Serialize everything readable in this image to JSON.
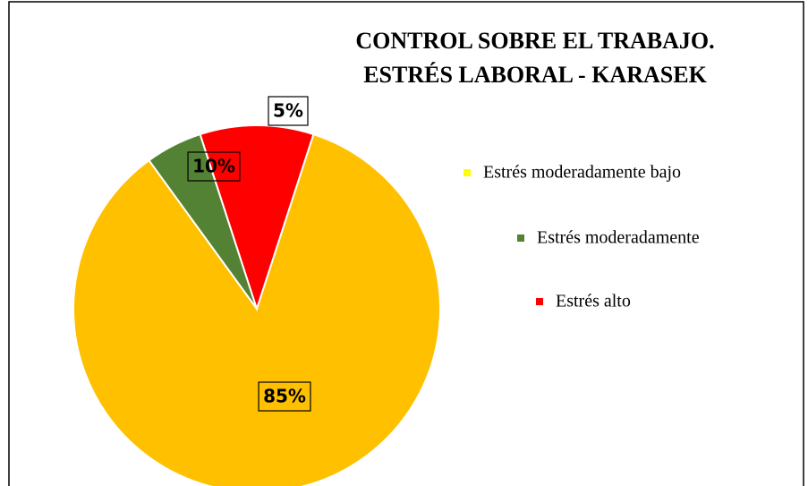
{
  "chart_data": {
    "type": "pie",
    "title": [
      "CONTROL SOBRE EL TRABAJO.",
      "ESTRÉS LABORAL - KARASEK"
    ],
    "categories": [
      "Estrés moderadamente bajo",
      "Estrés moderadamente",
      "Estrés alto"
    ],
    "values": [
      85,
      5,
      10
    ],
    "value_labels": [
      "85%",
      "5%",
      "10%"
    ],
    "colors": [
      "#ffc000",
      "#548235",
      "#ff0000"
    ],
    "start_angle": 18,
    "legend": "right"
  }
}
